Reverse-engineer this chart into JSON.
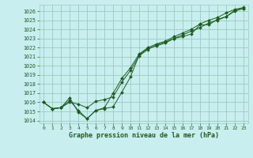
{
  "title": "Graphe pression niveau de la mer (hPa)",
  "bg_color": "#c8eef0",
  "grid_color": "#99ccbb",
  "line_color": "#1e5c1e",
  "xlim": [
    -0.5,
    23.5
  ],
  "ylim": [
    1013.7,
    1026.7
  ],
  "yticks": [
    1014,
    1015,
    1016,
    1017,
    1018,
    1019,
    1020,
    1021,
    1022,
    1023,
    1024,
    1025,
    1026
  ],
  "xticks": [
    0,
    1,
    2,
    3,
    4,
    5,
    6,
    7,
    8,
    9,
    10,
    11,
    12,
    13,
    14,
    15,
    16,
    17,
    18,
    19,
    20,
    21,
    22,
    23
  ],
  "series1": [
    1016.0,
    1015.3,
    1015.4,
    1016.2,
    1015.1,
    1014.2,
    1015.1,
    1015.3,
    1015.5,
    1017.1,
    1018.8,
    1021.2,
    1021.9,
    1022.2,
    1022.5,
    1023.0,
    1023.2,
    1023.5,
    1024.5,
    1024.5,
    1025.1,
    1025.4,
    1026.1,
    1026.3
  ],
  "series2": [
    1016.0,
    1015.3,
    1015.4,
    1016.0,
    1015.8,
    1015.4,
    1016.1,
    1016.3,
    1016.6,
    1018.2,
    1019.5,
    1021.1,
    1021.8,
    1022.3,
    1022.6,
    1023.0,
    1023.4,
    1023.8,
    1024.2,
    1024.7,
    1025.0,
    1025.4,
    1026.0,
    1026.3
  ],
  "series3": [
    1016.0,
    1015.3,
    1015.4,
    1016.5,
    1014.9,
    1014.2,
    1015.1,
    1015.4,
    1017.0,
    1018.6,
    1019.8,
    1021.3,
    1022.0,
    1022.4,
    1022.7,
    1023.2,
    1023.6,
    1024.0,
    1024.6,
    1025.0,
    1025.3,
    1025.8,
    1026.2,
    1026.4
  ]
}
